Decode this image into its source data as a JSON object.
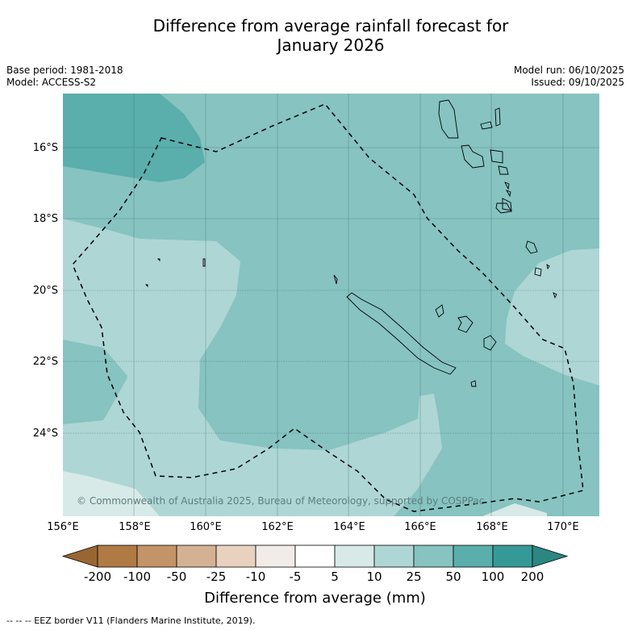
{
  "title_line1": "Difference from average rainfall forecast for",
  "title_line2": "January 2026",
  "base_period": "Base period: 1981-2018",
  "model": "Model: ACCESS-S2",
  "model_run": "Model run: 06/10/2025",
  "issued": "Issued: 09/10/2025",
  "lat_labels": [
    "16°S",
    "18°S",
    "20°S",
    "22°S",
    "24°S"
  ],
  "lon_labels": [
    "156°E",
    "158°E",
    "160°E",
    "162°E",
    "164°E",
    "166°E",
    "168°E",
    "170°E"
  ],
  "copyright": "© Commonwealth of Australia 2025, Bureau of Meteorology, supported by COSPPac",
  "colorbar": {
    "title": "Difference from average (mm)",
    "ticks": [
      "-200",
      "-100",
      "-50",
      "-25",
      "-10",
      "-5",
      "5",
      "10",
      "25",
      "50",
      "100",
      "200"
    ],
    "colors": [
      "#996633",
      "#b07a45",
      "#c39468",
      "#d5b194",
      "#e8d2bf",
      "#f1ece8",
      "#ffffff",
      "#d7eae8",
      "#aed6d5",
      "#86c3c1",
      "#5aaeac",
      "#359a97",
      "#2c8682"
    ]
  },
  "map_colors": {
    "band_5_10": "#d7eae8",
    "band_10_25": "#aed6d5",
    "band_25_50": "#86c3c1",
    "band_50_100": "#5aaeac"
  },
  "footnote": "--  --  -- EEZ border V11 (Flanders Marine Institute, 2019)."
}
